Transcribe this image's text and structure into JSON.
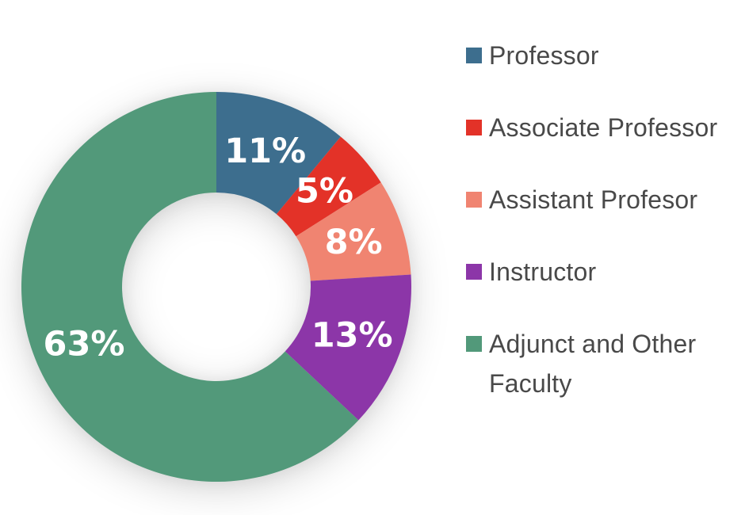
{
  "chart_data": {
    "type": "pie",
    "subtype": "donut",
    "title": "",
    "categories": [
      "Professor",
      "Associate Professor",
      "Assistant Profesor",
      "Instructor",
      "Adjunct and Other Faculty"
    ],
    "values": [
      11,
      5,
      8,
      13,
      63
    ],
    "value_labels": [
      "11%",
      "5%",
      "8%",
      "13%",
      "63%"
    ],
    "colors": [
      "#3d6e8e",
      "#e33228",
      "#f08471",
      "#8c36a8",
      "#52997a"
    ],
    "start_angle_deg": 0,
    "direction": "clockwise",
    "donut_hole_ratio": 0.48,
    "label_text_color": "#ffffff",
    "legend_position": "right",
    "legend_text_color": "#494949",
    "background_color": "#ffffff"
  }
}
